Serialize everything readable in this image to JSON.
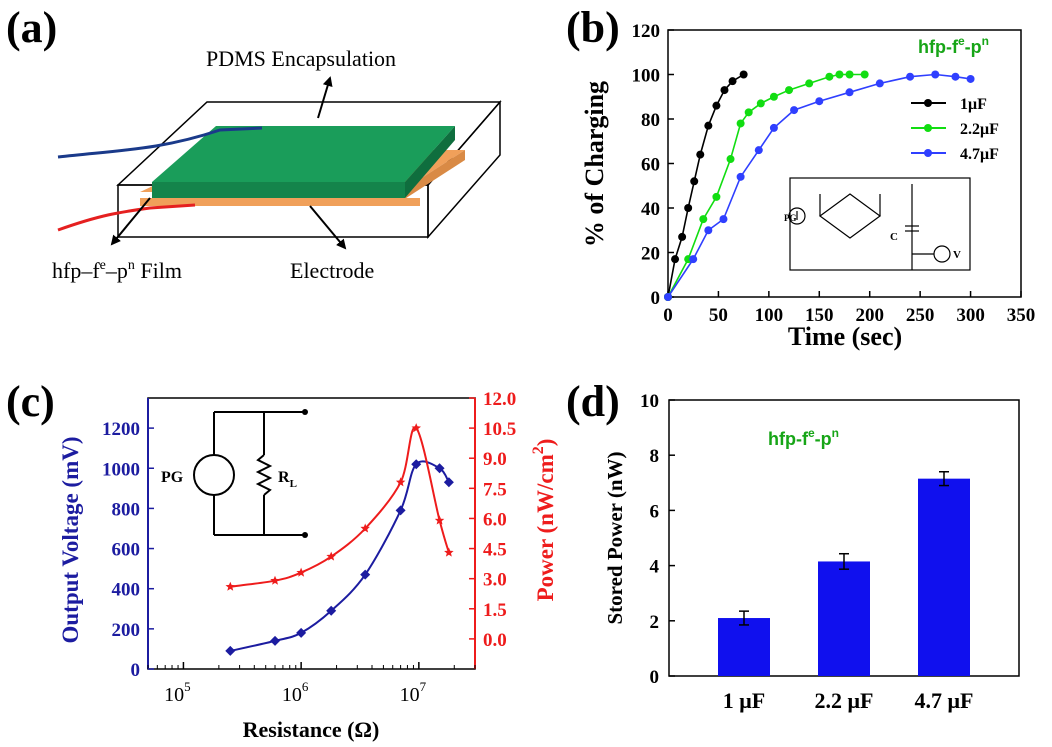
{
  "panels": {
    "a": {
      "label": "(a)",
      "callouts": {
        "encapsulation": "PDMS Encapsulation",
        "film": "hfp–f",
        "film_sup1": "e",
        "film_mid": "–p",
        "film_sup2": "n",
        "film_end": " Film",
        "electrode": "Electrode"
      },
      "colors": {
        "film": "#1a9d5a",
        "electrode": "#f0a05a",
        "wire_blue": "#1a3a8a",
        "wire_red": "#e52020"
      }
    },
    "b": {
      "label": "(b)"
    },
    "c": {
      "label": "(c)"
    },
    "d": {
      "label": "(d)"
    }
  },
  "chart_data": [
    {
      "id": "b",
      "type": "line",
      "title": "",
      "annotation": {
        "base": "hfp-f",
        "sup1": "e",
        "mid": "-p",
        "sup2": "n"
      },
      "xlabel": "Time (sec)",
      "ylabel": "% of Charging",
      "xlim": [
        0,
        350
      ],
      "ylim": [
        0,
        120
      ],
      "xticks": [
        0,
        50,
        100,
        150,
        200,
        250,
        300,
        350
      ],
      "yticks": [
        0,
        20,
        40,
        60,
        80,
        100,
        120
      ],
      "legend_position": "right",
      "inset_labels": {
        "pg": "PG",
        "c": "C",
        "v": "V"
      },
      "series": [
        {
          "name": "1μF",
          "color": "#000000",
          "x": [
            0,
            7,
            14,
            20,
            26,
            32,
            40,
            48,
            56,
            64,
            75
          ],
          "y": [
            0,
            17,
            27,
            40,
            52,
            64,
            77,
            86,
            93,
            97,
            100
          ]
        },
        {
          "name": "2.2μF",
          "color": "#11dd11",
          "x": [
            0,
            20,
            35,
            48,
            62,
            72,
            80,
            92,
            105,
            120,
            140,
            160,
            170,
            180,
            195
          ],
          "y": [
            0,
            17,
            35,
            45,
            62,
            78,
            83,
            87,
            90,
            93,
            96,
            99,
            100,
            100,
            100
          ]
        },
        {
          "name": "4.7μF",
          "color": "#2f3fff",
          "x": [
            0,
            25,
            40,
            55,
            72,
            90,
            105,
            125,
            150,
            180,
            210,
            240,
            265,
            285,
            300
          ],
          "y": [
            0,
            17,
            30,
            35,
            54,
            66,
            76,
            84,
            88,
            92,
            96,
            99,
            100,
            99,
            98
          ]
        }
      ]
    },
    {
      "id": "c",
      "type": "scatter",
      "xlabel": "Resistance (Ω)",
      "ylabel": "Output Voltage (mV)",
      "y2label": "Power (nW/cm",
      "y2label_sup": "2",
      "y2label_end": ")",
      "xscale": "log",
      "xlim": [
        50000,
        30000000
      ],
      "ylim": [
        0,
        1350
      ],
      "y2lim": [
        -1.5,
        12.0
      ],
      "xticks": [
        {
          "value": 100000,
          "base": "10",
          "exp": "5"
        },
        {
          "value": 1000000,
          "base": "10",
          "exp": "6"
        },
        {
          "value": 10000000,
          "base": "10",
          "exp": "7"
        }
      ],
      "yticks": [
        0,
        200,
        400,
        600,
        800,
        1000,
        1200
      ],
      "y2ticks": [
        "0.0",
        "1.5",
        "3.0",
        "4.5",
        "6.0",
        "7.5",
        "9.0",
        "10.5",
        "12.0"
      ],
      "inset_labels": {
        "pg": "PG",
        "rl": "R",
        "rl_sub": "L"
      },
      "series": [
        {
          "name": "Output Voltage",
          "axis": "left",
          "color": "#1c1ca0",
          "marker": "diamond",
          "x": [
            250000,
            600000,
            1000000,
            1800000,
            3500000,
            7000000,
            9500000,
            15000000,
            18000000
          ],
          "y": [
            90,
            140,
            180,
            290,
            470,
            790,
            1020,
            1000,
            930
          ]
        },
        {
          "name": "Power",
          "axis": "right",
          "color": "#ee1c1c",
          "marker": "star",
          "x": [
            250000,
            600000,
            1000000,
            1800000,
            3500000,
            7000000,
            9500000,
            15000000,
            18000000
          ],
          "y": [
            2.6,
            2.9,
            3.3,
            4.1,
            5.5,
            7.8,
            10.5,
            5.9,
            4.3
          ]
        }
      ]
    },
    {
      "id": "d",
      "type": "bar",
      "annotation": {
        "base": "hfp-f",
        "sup1": "e",
        "mid": "-p",
        "sup2": "n"
      },
      "xlabel": "",
      "ylabel": "Stored Power (nW)",
      "ylim": [
        0,
        10
      ],
      "yticks": [
        0,
        2,
        4,
        6,
        8,
        10
      ],
      "categories": [
        "1 μF",
        "2.2 μF",
        "4.7 μF"
      ],
      "values": [
        2.1,
        4.15,
        7.15
      ],
      "errors": [
        0.25,
        0.28,
        0.25
      ],
      "color": "#1010ee"
    }
  ]
}
